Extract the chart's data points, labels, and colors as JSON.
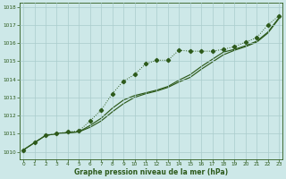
{
  "bg_color": "#cde8e8",
  "grid_color": "#aacccc",
  "line_color": "#2d5a1b",
  "xlabel": "Graphe pression niveau de la mer (hPa)",
  "ylim": [
    1009.6,
    1018.2
  ],
  "xlim": [
    -0.3,
    23.3
  ],
  "yticks": [
    1010,
    1011,
    1012,
    1013,
    1014,
    1015,
    1016,
    1017,
    1018
  ],
  "xticks": [
    0,
    1,
    2,
    3,
    4,
    5,
    6,
    7,
    8,
    9,
    10,
    11,
    12,
    13,
    14,
    15,
    16,
    17,
    18,
    19,
    20,
    21,
    22,
    23
  ],
  "series_dotted": [
    1010.1,
    1010.5,
    1010.9,
    1011.0,
    1011.1,
    1011.15,
    1011.7,
    1012.3,
    1013.2,
    1013.9,
    1014.25,
    1014.85,
    1015.05,
    1015.05,
    1015.6,
    1015.55,
    1015.55,
    1015.55,
    1015.65,
    1015.8,
    1016.05,
    1016.3,
    1017.0,
    1017.5
  ],
  "series_solid1": [
    1010.1,
    1010.5,
    1010.9,
    1011.0,
    1011.05,
    1011.1,
    1011.35,
    1011.7,
    1012.2,
    1012.65,
    1013.0,
    1013.2,
    1013.35,
    1013.55,
    1013.85,
    1014.1,
    1014.55,
    1014.95,
    1015.35,
    1015.6,
    1015.8,
    1016.05,
    1016.55,
    1017.35
  ],
  "series_solid2": [
    1010.1,
    1010.5,
    1010.9,
    1011.0,
    1011.05,
    1011.1,
    1011.45,
    1011.85,
    1012.4,
    1012.85,
    1013.1,
    1013.25,
    1013.4,
    1013.6,
    1013.95,
    1014.25,
    1014.7,
    1015.1,
    1015.5,
    1015.65,
    1015.85,
    1016.1,
    1016.6,
    1017.4
  ]
}
